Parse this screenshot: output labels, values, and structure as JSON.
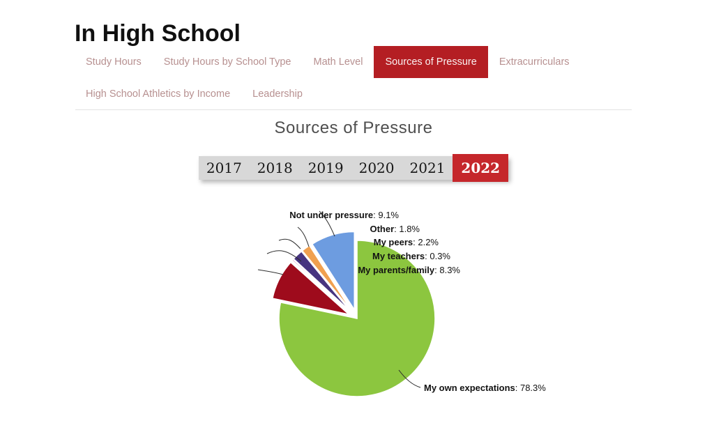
{
  "page": {
    "title": "In High School"
  },
  "tabs": {
    "row1": [
      {
        "label": "Study Hours",
        "active": false
      },
      {
        "label": "Study Hours by School Type",
        "active": false
      },
      {
        "label": "Math Level",
        "active": false
      },
      {
        "label": "Sources of Pressure",
        "active": true
      },
      {
        "label": "Extracurriculars",
        "active": false
      }
    ],
    "row2": [
      {
        "label": "High School Athletics by Income",
        "active": false
      },
      {
        "label": "Leadership",
        "active": false
      }
    ]
  },
  "chart": {
    "title": "Sources of Pressure",
    "years": [
      "2017",
      "2018",
      "2019",
      "2020",
      "2021",
      "2022"
    ],
    "selected_year": "2022"
  },
  "colors": {
    "tab_active_bg": "#B41E23",
    "tab_inactive_text": "#B79090",
    "year_active_bg": "#C5272B",
    "year_bar_bg": "#D8D8D8",
    "leader_line": "#2b2b2b"
  },
  "chart_data": {
    "type": "pie",
    "title": "Sources of Pressure",
    "year": "2022",
    "direction": "clockwise",
    "start_angle_deg": 0,
    "legend_position": "labels-with-leader-lines",
    "slices": [
      {
        "label": "My own expectations",
        "value": 78.3,
        "display": "My own expectations: 78.3%",
        "color": "#8CC63F",
        "exploded": false
      },
      {
        "label": "My parents/family",
        "value": 8.3,
        "display": "My parents/family: 8.3%",
        "color": "#9E0B1C",
        "exploded": true
      },
      {
        "label": "My teachers",
        "value": 0.3,
        "display": "My teachers: 0.3%",
        "color": "#E39CC8",
        "exploded": true
      },
      {
        "label": "My peers",
        "value": 2.2,
        "display": "My peers: 2.2%",
        "color": "#473480",
        "exploded": true
      },
      {
        "label": "Other",
        "value": 1.8,
        "display": "Other: 1.8%",
        "color": "#F0A04F",
        "exploded": true
      },
      {
        "label": "Not under pressure",
        "value": 9.1,
        "display": "Not under pressure: 9.1%",
        "color": "#6D9CE0",
        "exploded": true
      }
    ]
  }
}
